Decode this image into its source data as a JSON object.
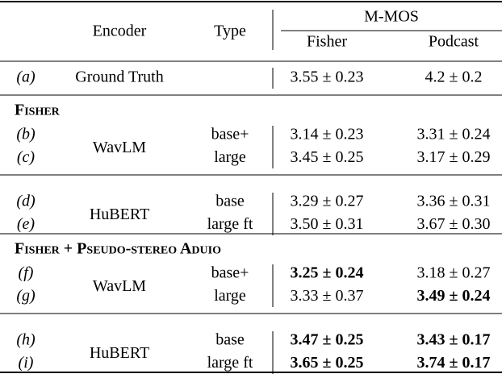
{
  "table": {
    "header": {
      "encoder": "Encoder",
      "type": "Type",
      "metric": "M-MOS",
      "columns": [
        "Fisher",
        "Podcast"
      ]
    },
    "ground_truth": {
      "label": "(a)",
      "encoder": "Ground Truth",
      "values": [
        "3.55 ± 0.23",
        "4.2 ± 0.2"
      ]
    },
    "sections": [
      {
        "title": "Fisher",
        "groups": [
          {
            "encoder": "WavLM",
            "rows": [
              {
                "label": "(b)",
                "type": "base+",
                "values": [
                  "3.14 ± 0.23",
                  "3.31 ± 0.24"
                ]
              },
              {
                "label": "(c)",
                "type": "large",
                "values": [
                  "3.45 ± 0.25",
                  "3.17 ± 0.29"
                ]
              }
            ]
          },
          {
            "encoder": "HuBERT",
            "rows": [
              {
                "label": "(d)",
                "type": "base",
                "values": [
                  "3.29 ± 0.27",
                  "3.36 ± 0.31"
                ]
              },
              {
                "label": "(e)",
                "type": "large ft",
                "values": [
                  "3.50 ± 0.31",
                  "3.67 ± 0.30"
                ]
              }
            ]
          }
        ]
      },
      {
        "title": "Fisher + Pseudo-stereo Aduio",
        "groups": [
          {
            "encoder": "WavLM",
            "rows": [
              {
                "label": "(f)",
                "type": "base+",
                "values": [
                  "3.25 ± 0.24",
                  "3.18 ± 0.27"
                ],
                "bold": [
                  true,
                  false
                ]
              },
              {
                "label": "(g)",
                "type": "large",
                "values": [
                  "3.33 ± 0.37",
                  "3.49 ± 0.24"
                ],
                "bold": [
                  false,
                  true
                ]
              }
            ]
          },
          {
            "encoder": "HuBERT",
            "rows": [
              {
                "label": "(h)",
                "type": "base",
                "values": [
                  "3.47 ± 0.25",
                  "3.43 ± 0.17"
                ],
                "bold": [
                  true,
                  true
                ]
              },
              {
                "label": "(i)",
                "type": "large ft",
                "values": [
                  "3.65 ± 0.25",
                  "3.74 ± 0.17"
                ],
                "bold": [
                  true,
                  true
                ]
              }
            ]
          }
        ]
      }
    ]
  }
}
